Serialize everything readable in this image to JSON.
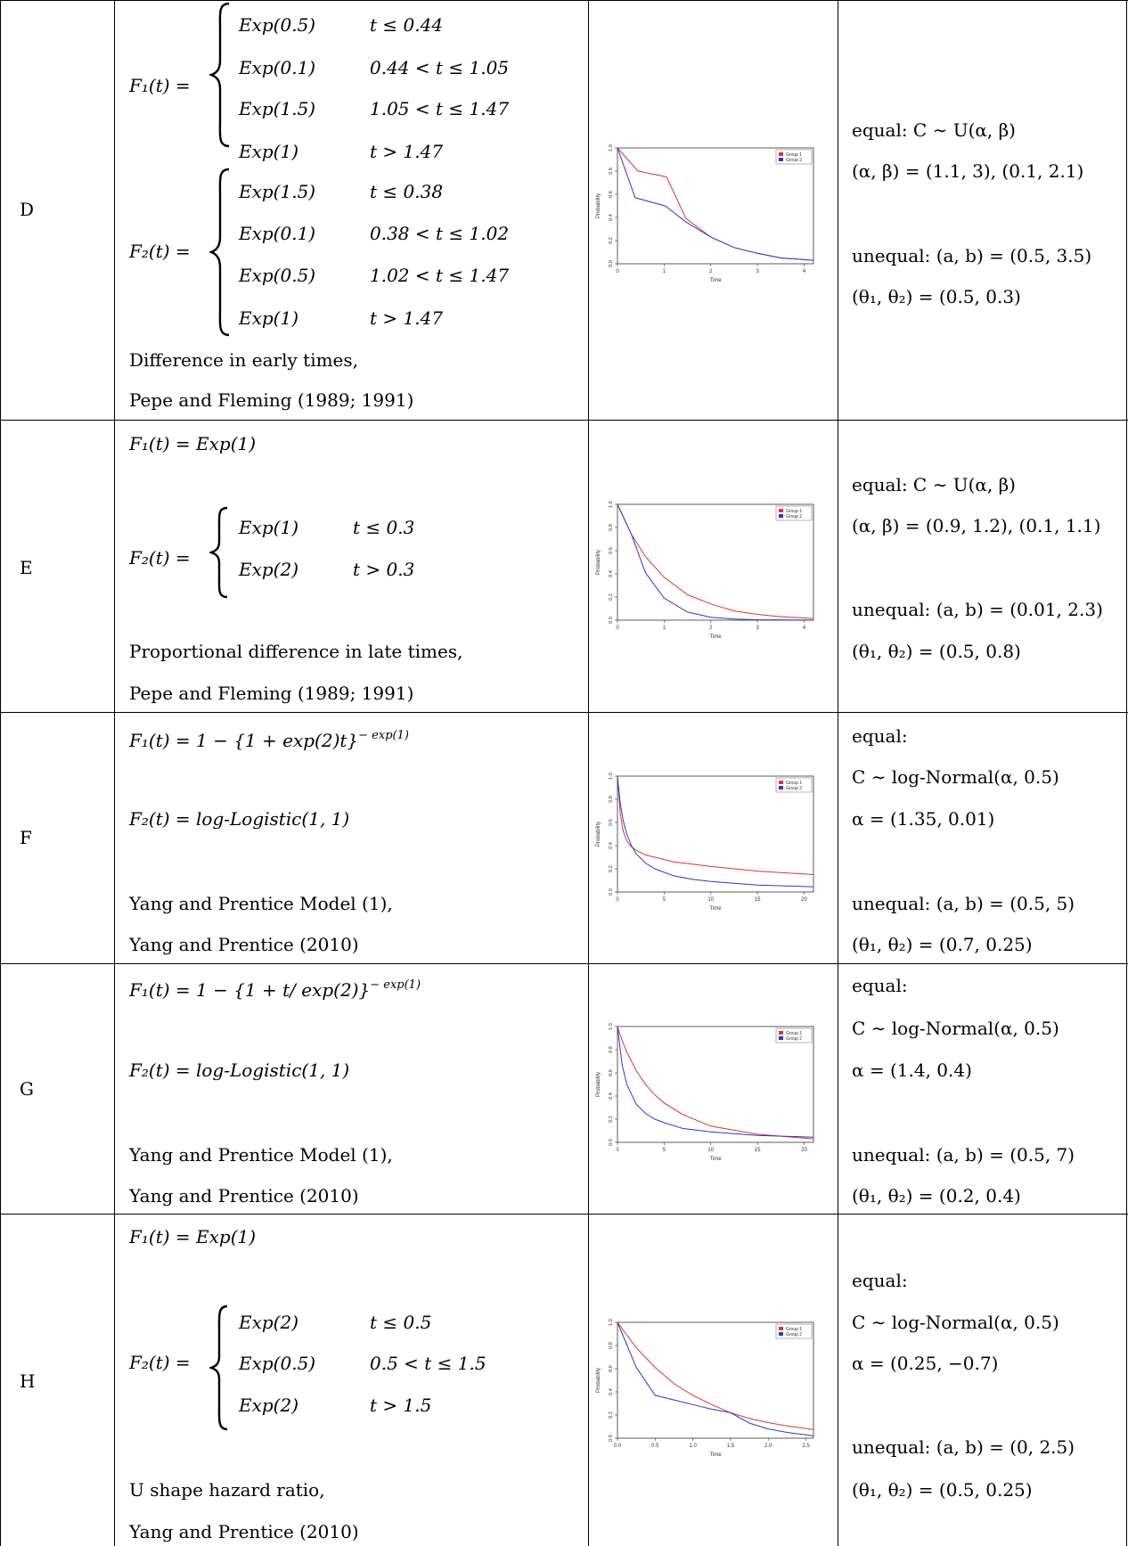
{
  "rows": [
    {
      "id": "D",
      "f1_lhs": "F₁(t) =",
      "f1_cases": [
        {
          "dist": "Exp(0.5)",
          "cond": "t ≤ 0.44"
        },
        {
          "dist": "Exp(0.1)",
          "cond": "0.44 < t ≤ 1.05"
        },
        {
          "dist": "Exp(1.5)",
          "cond": "1.05 < t ≤ 1.47"
        },
        {
          "dist": "Exp(1)",
          "cond": "t > 1.47"
        }
      ],
      "f2_lhs": "F₂(t) =",
      "f2_cases": [
        {
          "dist": "Exp(1.5)",
          "cond": "t ≤ 0.38"
        },
        {
          "dist": "Exp(0.1)",
          "cond": "0.38 < t ≤ 1.02"
        },
        {
          "dist": "Exp(0.5)",
          "cond": "1.02 < t ≤ 1.47"
        },
        {
          "dist": "Exp(1)",
          "cond": "t > 1.47"
        }
      ],
      "desc1": "Difference in early times,",
      "desc2": "Pepe and Fleming (1989; 1991)",
      "censor": [
        "equal: C ∼ U(α, β)",
        "(α, β) = (1.1, 3), (0.1, 2.1)",
        "unequal: (a, b) = (0.5, 3.5)",
        "(θ₁, θ₂) = (0.5, 0.3)"
      ]
    },
    {
      "id": "E",
      "f1": "F₁(t) = Exp(1)",
      "f2_lhs": "F₂(t) =",
      "f2_cases": [
        {
          "dist": "Exp(1)",
          "cond": "t ≤ 0.3"
        },
        {
          "dist": "Exp(2)",
          "cond": "t > 0.3"
        }
      ],
      "desc1": "Proportional difference in late times,",
      "desc2": "Pepe and Fleming (1989; 1991)",
      "censor": [
        "equal: C ∼ U(α, β)",
        "(α, β) = (0.9, 1.2), (0.1, 1.1)",
        "unequal: (a, b) = (0.01, 2.3)",
        "(θ₁, θ₂) = (0.5, 0.8)"
      ]
    },
    {
      "id": "F",
      "f1": "F₁(t) = 1 − {1 + exp(2)t}",
      "f1_sup": "− exp(1)",
      "f2": "F₂(t) = log-Logistic(1, 1)",
      "desc1": "Yang and Prentice Model (1),",
      "desc2": "Yang and Prentice (2010)",
      "censor": [
        "equal:",
        "C ∼ log-Normal(α, 0.5)",
        "α = (1.35, 0.01)",
        "unequal: (a, b) = (0.5, 5)",
        "(θ₁, θ₂) = (0.7, 0.25)"
      ]
    },
    {
      "id": "G",
      "f1": "F₁(t) = 1 − {1 + t/ exp(2)}",
      "f1_sup": "− exp(1)",
      "f2": "F₂(t) = log-Logistic(1, 1)",
      "desc1": "Yang and Prentice Model (1),",
      "desc2": "Yang and Prentice (2010)",
      "censor": [
        "equal:",
        "C ∼ log-Normal(α, 0.5)",
        "α = (1.4, 0.4)",
        "unequal: (a, b) = (0.5, 7)",
        "(θ₁, θ₂) = (0.2, 0.4)"
      ]
    },
    {
      "id": "H",
      "f1": "F₁(t) = Exp(1)",
      "f2_lhs": "F₂(t) =",
      "f2_cases": [
        {
          "dist": "Exp(2)",
          "cond": "t ≤ 0.5"
        },
        {
          "dist": "Exp(0.5)",
          "cond": "0.5 < t ≤ 1.5"
        },
        {
          "dist": "Exp(2)",
          "cond": "t > 1.5"
        }
      ],
      "desc1": "U shape hazard ratio,",
      "desc2": "Yang and Prentice (2010)",
      "censor": [
        "equal:",
        "C ∼ log-Normal(α, 0.5)",
        "α = (0.25, −0.7)",
        "unequal: (a, b) = (0, 2.5)",
        "(θ₁, θ₂) = (0.5, 0.25)"
      ]
    }
  ],
  "chart_data": [
    {
      "type": "line",
      "for_row": "D",
      "xlabel": "Time",
      "ylabel": "Probability",
      "xlim": [
        0,
        4.2
      ],
      "ylim": [
        0,
        1
      ],
      "xticks": [
        "0",
        "1",
        "2",
        "3",
        "4"
      ],
      "yticks": [
        "0.0",
        "0.2",
        "0.4",
        "0.6",
        "0.8",
        "1.0"
      ],
      "legend": "top-right",
      "series": [
        {
          "name": "Group 1",
          "color": "#dd3333",
          "x": [
            0,
            0.44,
            1.05,
            1.47,
            2,
            2.5,
            3,
            3.5,
            4.2
          ],
          "y": [
            1,
            0.8,
            0.75,
            0.39,
            0.23,
            0.14,
            0.09,
            0.05,
            0.03
          ]
        },
        {
          "name": "Group 2",
          "color": "#3333cc",
          "x": [
            0,
            0.38,
            1.02,
            1.47,
            2,
            2.5,
            3,
            3.5,
            4.2
          ],
          "y": [
            1,
            0.57,
            0.5,
            0.36,
            0.23,
            0.14,
            0.09,
            0.05,
            0.03
          ]
        }
      ]
    },
    {
      "type": "line",
      "for_row": "E",
      "xlabel": "Time",
      "ylabel": "Probability",
      "xlim": [
        0,
        4.2
      ],
      "ylim": [
        0,
        1
      ],
      "xticks": [
        "0",
        "1",
        "2",
        "3",
        "4"
      ],
      "yticks": [
        "0.0",
        "0.2",
        "0.4",
        "0.6",
        "0.8",
        "1.0"
      ],
      "legend": "top-right",
      "series": [
        {
          "name": "Group 1",
          "color": "#dd3333",
          "x": [
            0,
            0.3,
            0.6,
            1,
            1.5,
            2,
            2.5,
            3,
            3.5,
            4.2
          ],
          "y": [
            1,
            0.74,
            0.55,
            0.37,
            0.22,
            0.14,
            0.08,
            0.05,
            0.03,
            0.015
          ]
        },
        {
          "name": "Group 2",
          "color": "#3333cc",
          "x": [
            0,
            0.3,
            0.6,
            1,
            1.5,
            2,
            2.5,
            3,
            4.2
          ],
          "y": [
            1,
            0.74,
            0.41,
            0.19,
            0.07,
            0.025,
            0.01,
            0.004,
            0.001
          ]
        }
      ]
    },
    {
      "type": "line",
      "for_row": "F",
      "xlabel": "Time",
      "ylabel": "Probability",
      "xlim": [
        0,
        21
      ],
      "ylim": [
        0,
        1
      ],
      "xticks": [
        "0",
        "5",
        "10",
        "15",
        "20"
      ],
      "yticks": [
        "0.0",
        "0.2",
        "0.4",
        "0.6",
        "0.8",
        "1.0"
      ],
      "legend": "top-right",
      "series": [
        {
          "name": "Group 1",
          "color": "#dd3333",
          "x": [
            0,
            0.3,
            0.6,
            1,
            1.5,
            2,
            3,
            4,
            6,
            8,
            10,
            15,
            21
          ],
          "y": [
            1,
            0.68,
            0.53,
            0.44,
            0.39,
            0.36,
            0.32,
            0.3,
            0.26,
            0.24,
            0.22,
            0.18,
            0.15
          ]
        },
        {
          "name": "Group 2",
          "color": "#3333cc",
          "x": [
            0,
            0.3,
            0.6,
            1,
            1.5,
            2,
            3,
            4,
            6,
            8,
            10,
            15,
            21
          ],
          "y": [
            1,
            0.77,
            0.62,
            0.5,
            0.4,
            0.33,
            0.25,
            0.2,
            0.14,
            0.11,
            0.09,
            0.06,
            0.045
          ]
        }
      ]
    },
    {
      "type": "line",
      "for_row": "G",
      "xlabel": "Time",
      "ylabel": "Probability",
      "xlim": [
        0,
        21
      ],
      "ylim": [
        0,
        1
      ],
      "xticks": [
        "0",
        "5",
        "10",
        "15",
        "20"
      ],
      "yticks": [
        "0.0",
        "0.2",
        "0.4",
        "0.6",
        "0.8",
        "1.0"
      ],
      "legend": "top-right",
      "series": [
        {
          "name": "Group 1",
          "color": "#dd3333",
          "x": [
            0,
            0.5,
            1,
            2,
            3,
            4,
            5,
            7,
            10,
            15,
            21
          ],
          "y": [
            1,
            0.88,
            0.78,
            0.62,
            0.5,
            0.41,
            0.34,
            0.24,
            0.14,
            0.07,
            0.03
          ]
        },
        {
          "name": "Group 2",
          "color": "#3333cc",
          "x": [
            0,
            0.5,
            1,
            2,
            3,
            4,
            5,
            7,
            10,
            15,
            21
          ],
          "y": [
            1,
            0.67,
            0.5,
            0.33,
            0.25,
            0.2,
            0.17,
            0.12,
            0.09,
            0.06,
            0.045
          ]
        }
      ]
    },
    {
      "type": "line",
      "for_row": "H",
      "xlabel": "Time",
      "ylabel": "Probability",
      "xlim": [
        0,
        2.6
      ],
      "ylim": [
        0,
        1
      ],
      "xticks": [
        "0.0",
        "0.5",
        "1.0",
        "1.5",
        "2.0",
        "2.5"
      ],
      "yticks": [
        "0.0",
        "0.2",
        "0.4",
        "0.6",
        "0.8",
        "1.0"
      ],
      "legend": "top-right",
      "series": [
        {
          "name": "Group 1",
          "color": "#dd3333",
          "x": [
            0,
            0.25,
            0.5,
            0.75,
            1,
            1.25,
            1.5,
            1.75,
            2,
            2.25,
            2.6
          ],
          "y": [
            1,
            0.78,
            0.61,
            0.47,
            0.37,
            0.29,
            0.22,
            0.17,
            0.135,
            0.105,
            0.075
          ]
        },
        {
          "name": "Group 2",
          "color": "#3333cc",
          "x": [
            0,
            0.25,
            0.5,
            0.75,
            1,
            1.25,
            1.5,
            1.75,
            2,
            2.25,
            2.6
          ],
          "y": [
            1,
            0.61,
            0.37,
            0.33,
            0.29,
            0.25,
            0.22,
            0.13,
            0.08,
            0.05,
            0.02
          ]
        }
      ]
    }
  ]
}
